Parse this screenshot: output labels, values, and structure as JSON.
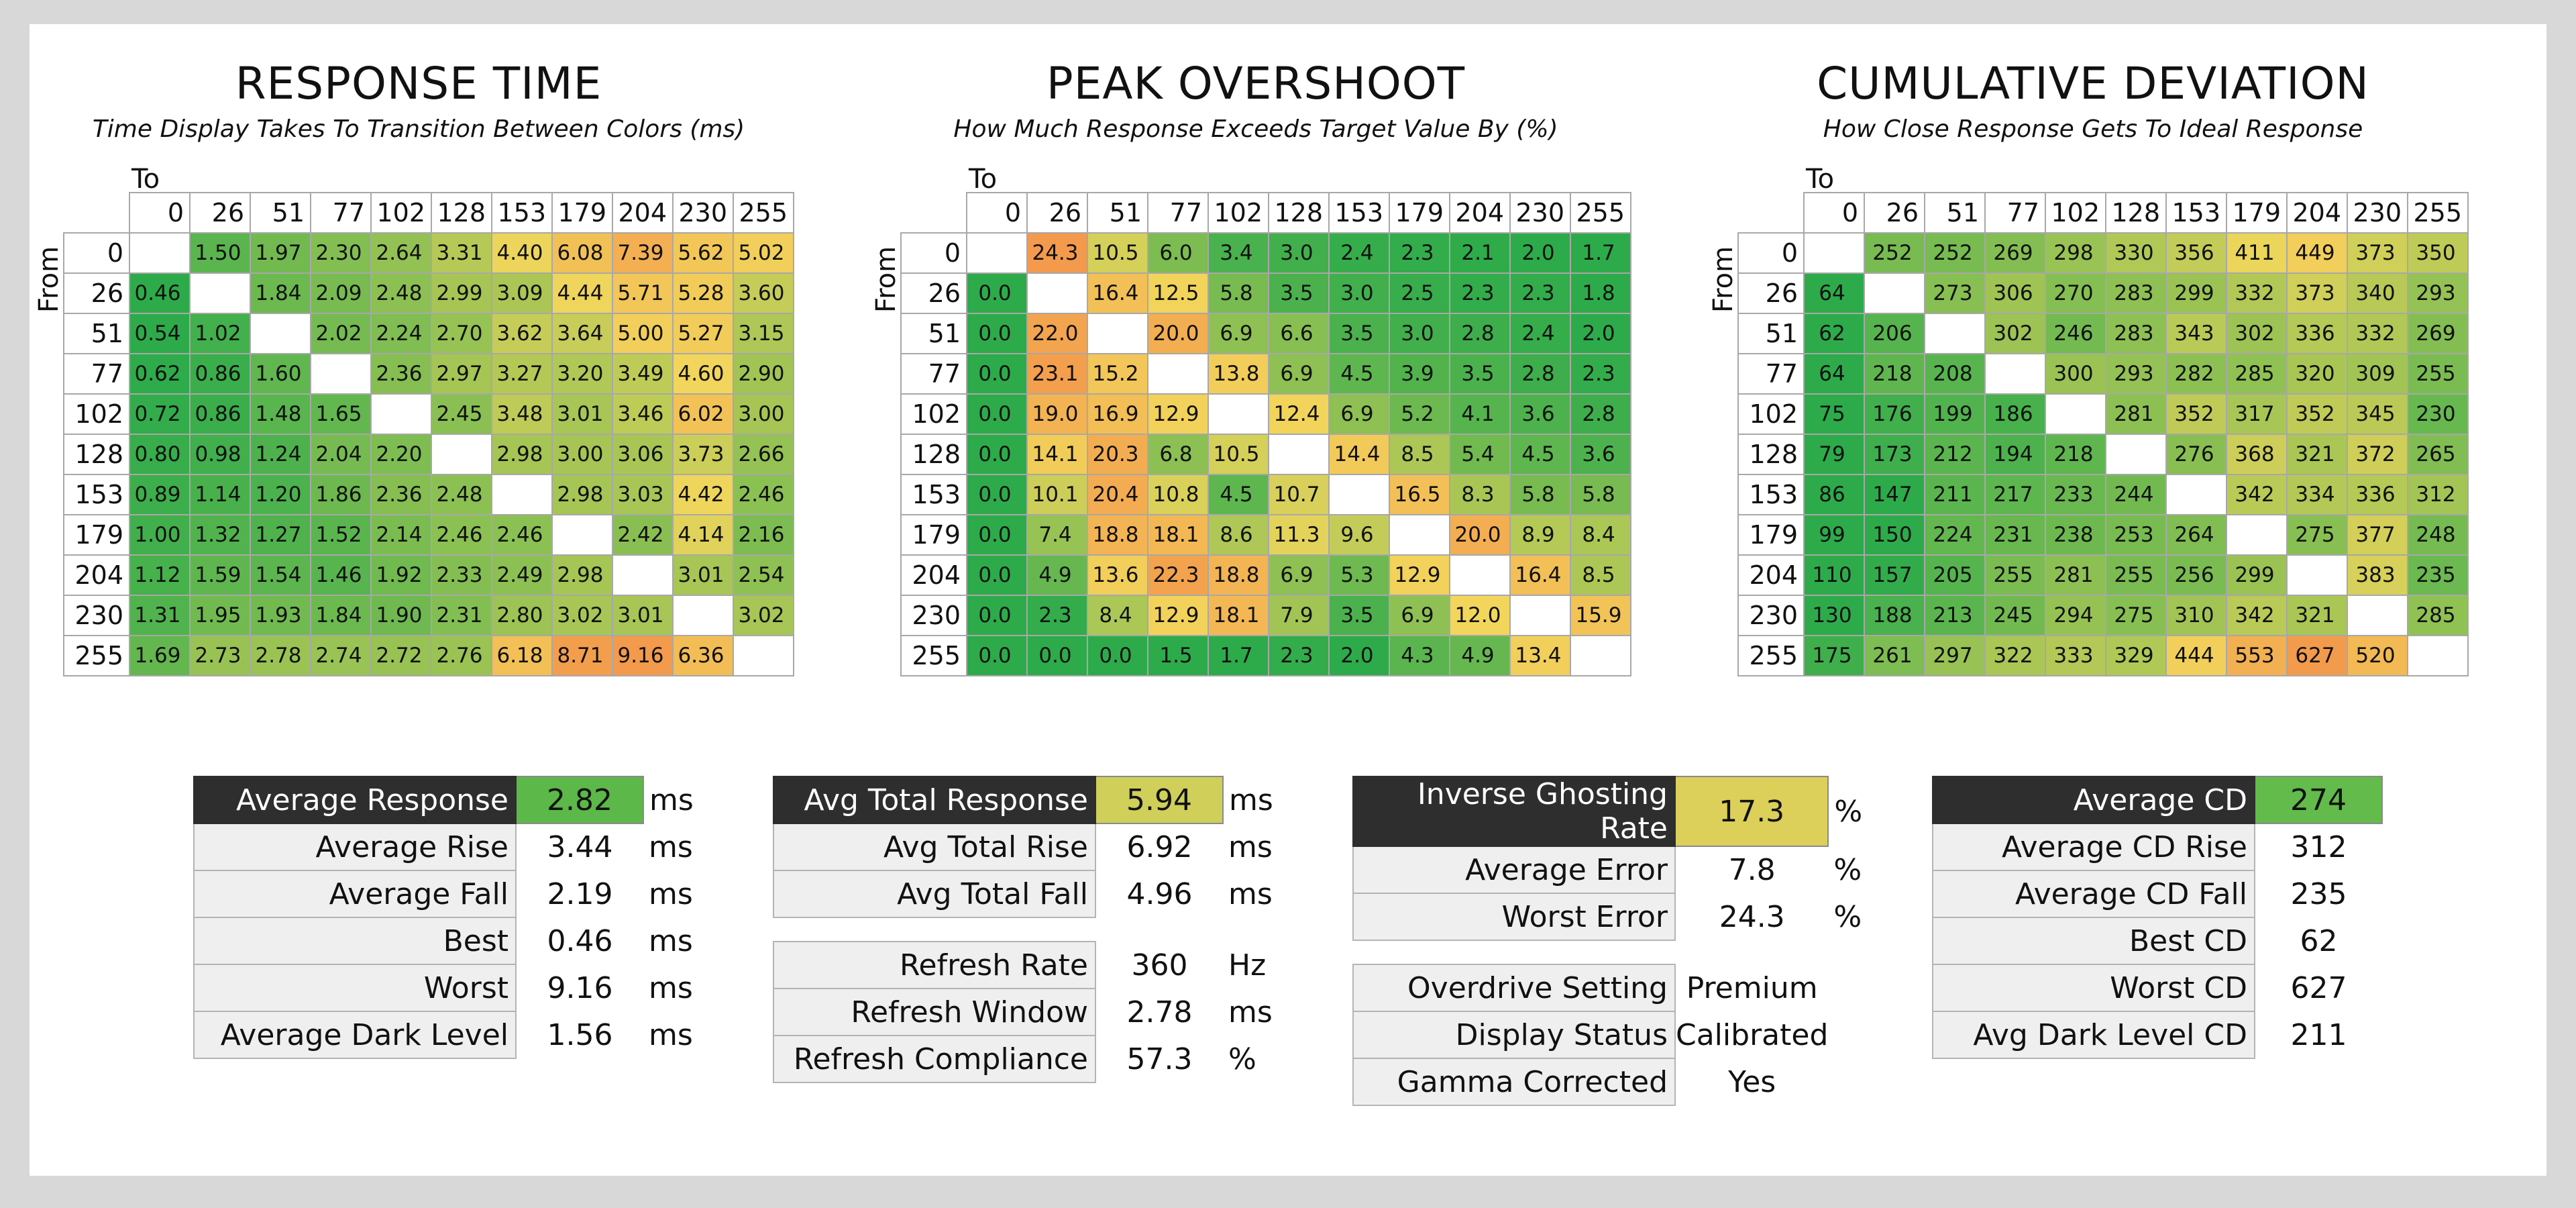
{
  "axis_labels": {
    "to": "To",
    "from": "From"
  },
  "chart_data": [
    {
      "type": "heatmap",
      "title": "RESPONSE TIME",
      "subtitle": "Time Display Takes To Transition Between Colors (ms)",
      "xlabel": "To",
      "ylabel": "From",
      "levels": [
        "0",
        "26",
        "51",
        "77",
        "102",
        "128",
        "153",
        "179",
        "204",
        "230",
        "255"
      ],
      "color_scale": {
        "low": 0.6,
        "mid": 4.5,
        "high": 9.0
      },
      "values": [
        [
          null,
          "1.50",
          "1.97",
          "2.30",
          "2.64",
          "3.31",
          "4.40",
          "6.08",
          "7.39",
          "5.62",
          "5.02"
        ],
        [
          "0.46",
          null,
          "1.84",
          "2.09",
          "2.48",
          "2.99",
          "3.09",
          "4.44",
          "5.71",
          "5.28",
          "3.60"
        ],
        [
          "0.54",
          "1.02",
          null,
          "2.02",
          "2.24",
          "2.70",
          "3.62",
          "3.64",
          "5.00",
          "5.27",
          "3.15"
        ],
        [
          "0.62",
          "0.86",
          "1.60",
          null,
          "2.36",
          "2.97",
          "3.27",
          "3.20",
          "3.49",
          "4.60",
          "2.90"
        ],
        [
          "0.72",
          "0.86",
          "1.48",
          "1.65",
          null,
          "2.45",
          "3.48",
          "3.01",
          "3.46",
          "6.02",
          "3.00"
        ],
        [
          "0.80",
          "0.98",
          "1.24",
          "2.04",
          "2.20",
          null,
          "2.98",
          "3.00",
          "3.06",
          "3.73",
          "2.66"
        ],
        [
          "0.89",
          "1.14",
          "1.20",
          "1.86",
          "2.36",
          "2.48",
          null,
          "2.98",
          "3.03",
          "4.42",
          "2.46"
        ],
        [
          "1.00",
          "1.32",
          "1.27",
          "1.52",
          "2.14",
          "2.46",
          "2.46",
          null,
          "2.42",
          "4.14",
          "2.16"
        ],
        [
          "1.12",
          "1.59",
          "1.54",
          "1.46",
          "1.92",
          "2.33",
          "2.49",
          "2.98",
          null,
          "3.01",
          "2.54"
        ],
        [
          "1.31",
          "1.95",
          "1.93",
          "1.84",
          "1.90",
          "2.31",
          "2.80",
          "3.02",
          "3.01",
          null,
          "3.02"
        ],
        [
          "1.69",
          "2.73",
          "2.78",
          "2.74",
          "2.72",
          "2.76",
          "6.18",
          "8.71",
          "9.16",
          "6.36",
          null
        ]
      ]
    },
    {
      "type": "heatmap",
      "title": "PEAK OVERSHOOT",
      "subtitle": "How Much Response Exceeds Target Value By (%)",
      "xlabel": "To",
      "ylabel": "From",
      "levels": [
        "0",
        "26",
        "51",
        "77",
        "102",
        "128",
        "153",
        "179",
        "204",
        "230",
        "255"
      ],
      "color_scale": {
        "low": 2.0,
        "mid": 12.0,
        "high": 24.0
      },
      "values": [
        [
          null,
          "24.3",
          "10.5",
          "6.0",
          "3.4",
          "3.0",
          "2.4",
          "2.3",
          "2.1",
          "2.0",
          "1.7"
        ],
        [
          "0.0",
          null,
          "16.4",
          "12.5",
          "5.8",
          "3.5",
          "3.0",
          "2.5",
          "2.3",
          "2.3",
          "1.8"
        ],
        [
          "0.0",
          "22.0",
          null,
          "20.0",
          "6.9",
          "6.6",
          "3.5",
          "3.0",
          "2.8",
          "2.4",
          "2.0"
        ],
        [
          "0.0",
          "23.1",
          "15.2",
          null,
          "13.8",
          "6.9",
          "4.5",
          "3.9",
          "3.5",
          "2.8",
          "2.3"
        ],
        [
          "0.0",
          "19.0",
          "16.9",
          "12.9",
          null,
          "12.4",
          "6.9",
          "5.2",
          "4.1",
          "3.6",
          "2.8"
        ],
        [
          "0.0",
          "14.1",
          "20.3",
          "6.8",
          "10.5",
          null,
          "14.4",
          "8.5",
          "5.4",
          "4.5",
          "3.6"
        ],
        [
          "0.0",
          "10.1",
          "20.4",
          "10.8",
          "4.5",
          "10.7",
          null,
          "16.5",
          "8.3",
          "5.8",
          "5.8"
        ],
        [
          "0.0",
          "7.4",
          "18.8",
          "18.1",
          "8.6",
          "11.3",
          "9.6",
          null,
          "20.0",
          "8.9",
          "8.4"
        ],
        [
          "0.0",
          "4.9",
          "13.6",
          "22.3",
          "18.8",
          "6.9",
          "5.3",
          "12.9",
          null,
          "16.4",
          "8.5"
        ],
        [
          "0.0",
          "2.3",
          "8.4",
          "12.9",
          "18.1",
          "7.9",
          "3.5",
          "6.9",
          "12.0",
          null,
          "15.9"
        ],
        [
          "0.0",
          "0.0",
          "0.0",
          "1.5",
          "1.7",
          "2.3",
          "2.0",
          "4.3",
          "4.9",
          "13.4",
          null
        ]
      ]
    },
    {
      "type": "heatmap",
      "title": "CUMULATIVE DEVIATION",
      "subtitle": "How Close Response Gets To Ideal Response",
      "xlabel": "To",
      "ylabel": "From",
      "levels": [
        "0",
        "26",
        "51",
        "77",
        "102",
        "128",
        "153",
        "179",
        "204",
        "230",
        "255"
      ],
      "color_scale": {
        "low": 150,
        "mid": 420,
        "high": 630
      },
      "values": [
        [
          null,
          "252",
          "252",
          "269",
          "298",
          "330",
          "356",
          "411",
          "449",
          "373",
          "350"
        ],
        [
          "64",
          null,
          "273",
          "306",
          "270",
          "283",
          "299",
          "332",
          "373",
          "340",
          "293"
        ],
        [
          "62",
          "206",
          null,
          "302",
          "246",
          "283",
          "343",
          "302",
          "336",
          "332",
          "269"
        ],
        [
          "64",
          "218",
          "208",
          null,
          "300",
          "293",
          "282",
          "285",
          "320",
          "309",
          "255"
        ],
        [
          "75",
          "176",
          "199",
          "186",
          null,
          "281",
          "352",
          "317",
          "352",
          "345",
          "230"
        ],
        [
          "79",
          "173",
          "212",
          "194",
          "218",
          null,
          "276",
          "368",
          "321",
          "372",
          "265"
        ],
        [
          "86",
          "147",
          "211",
          "217",
          "233",
          "244",
          null,
          "342",
          "334",
          "336",
          "312"
        ],
        [
          "99",
          "150",
          "224",
          "231",
          "238",
          "253",
          "264",
          null,
          "275",
          "377",
          "248"
        ],
        [
          "110",
          "157",
          "205",
          "255",
          "281",
          "255",
          "256",
          "299",
          null,
          "383",
          "235"
        ],
        [
          "130",
          "188",
          "213",
          "245",
          "294",
          "275",
          "310",
          "342",
          "321",
          null,
          "285"
        ],
        [
          "175",
          "261",
          "297",
          "322",
          "333",
          "329",
          "444",
          "553",
          "627",
          "520",
          null
        ]
      ]
    }
  ],
  "stats": [
    {
      "rows": [
        {
          "key": "Average Response",
          "value": "2.82",
          "unit": "ms",
          "head": true,
          "color": "#5cb848"
        },
        {
          "key": "Average Rise",
          "value": "3.44",
          "unit": "ms"
        },
        {
          "key": "Average Fall",
          "value": "2.19",
          "unit": "ms"
        },
        {
          "key": "Best",
          "value": "0.46",
          "unit": "ms"
        },
        {
          "key": "Worst",
          "value": "9.16",
          "unit": "ms"
        },
        {
          "key": "Average Dark Level",
          "value": "1.56",
          "unit": "ms"
        }
      ]
    },
    {
      "rows": [
        {
          "key": "Avg Total Response",
          "value": "5.94",
          "unit": "ms",
          "head": true,
          "color": "#cfcf5a"
        },
        {
          "key": "Avg Total Rise",
          "value": "6.92",
          "unit": "ms"
        },
        {
          "key": "Avg Total Fall",
          "value": "4.96",
          "unit": "ms"
        },
        {
          "gap": true
        },
        {
          "key": "Refresh Rate",
          "value": "360",
          "unit": "Hz"
        },
        {
          "key": "Refresh Window",
          "value": "2.78",
          "unit": "ms"
        },
        {
          "key": "Refresh Compliance",
          "value": "57.3",
          "unit": "%"
        }
      ]
    },
    {
      "rows": [
        {
          "key": "Inverse Ghosting Rate",
          "value": "17.3",
          "unit": "%",
          "head": true,
          "color": "#dccf5a"
        },
        {
          "key": "Average Error",
          "value": "7.8",
          "unit": "%"
        },
        {
          "key": "Worst Error",
          "value": "24.3",
          "unit": "%"
        },
        {
          "gap": true
        },
        {
          "key": "Overdrive Setting",
          "value": "Premium",
          "unit": ""
        },
        {
          "key": "Display Status",
          "value": "Calibrated",
          "unit": ""
        },
        {
          "key": "Gamma Corrected",
          "value": "Yes",
          "unit": ""
        }
      ]
    },
    {
      "rows": [
        {
          "key": "Average CD",
          "value": "274",
          "unit": "",
          "head": true,
          "color": "#62bb4a"
        },
        {
          "key": "Average CD Rise",
          "value": "312",
          "unit": ""
        },
        {
          "key": "Average CD Fall",
          "value": "235",
          "unit": ""
        },
        {
          "key": "Best CD",
          "value": "62",
          "unit": ""
        },
        {
          "key": "Worst CD",
          "value": "627",
          "unit": ""
        },
        {
          "key": "Avg Dark Level CD",
          "value": "211",
          "unit": ""
        }
      ]
    }
  ],
  "colors": {
    "green": "#2dab4a",
    "yellow": "#f2d65c",
    "orange": "#f39a4c"
  }
}
